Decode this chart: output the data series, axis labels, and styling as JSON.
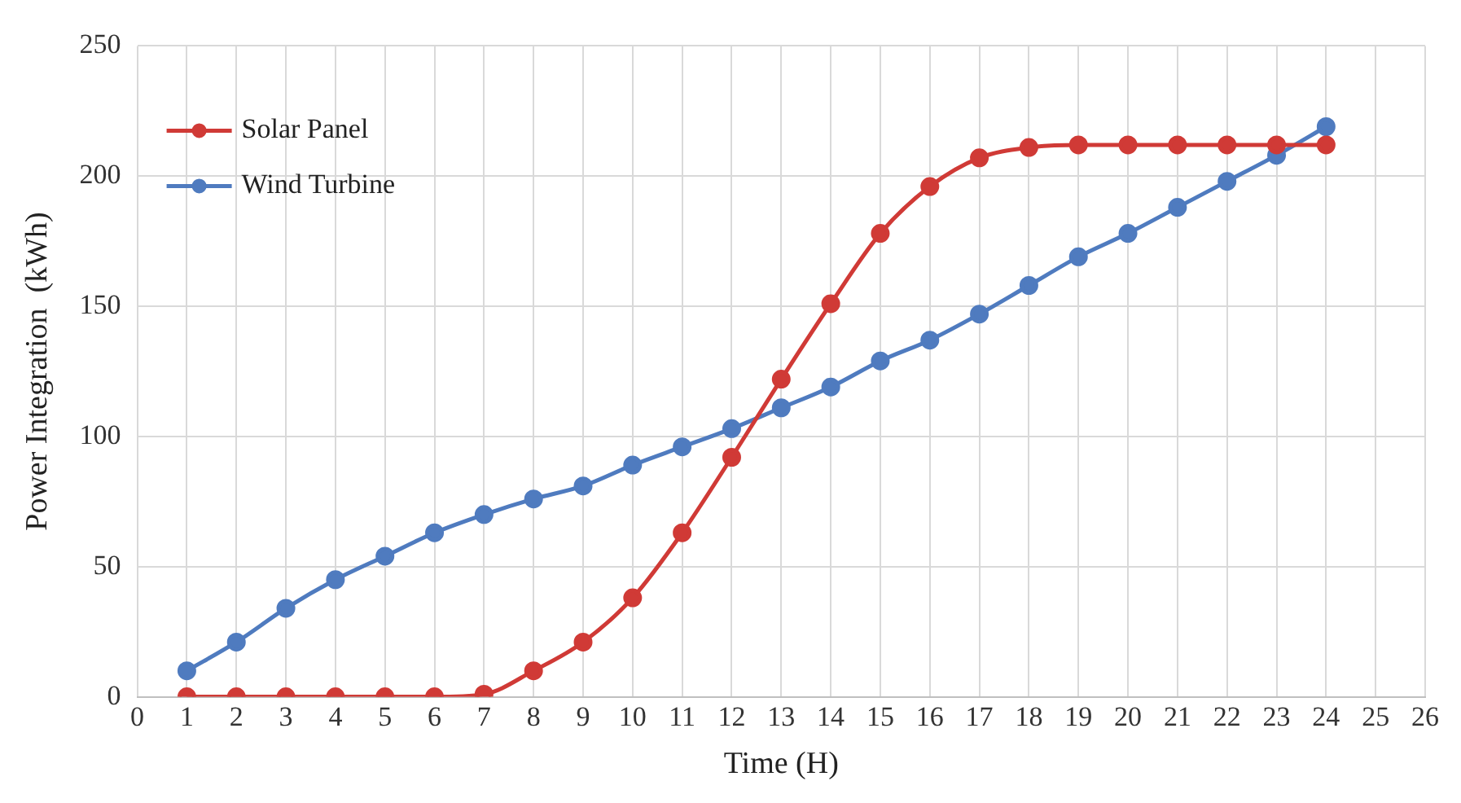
{
  "chart_data": {
    "type": "line",
    "xlabel": "Time (H)",
    "ylabel": "Power Integration  (kWh)",
    "x": [
      1,
      2,
      3,
      4,
      5,
      6,
      7,
      8,
      9,
      10,
      11,
      12,
      13,
      14,
      15,
      16,
      17,
      18,
      19,
      20,
      21,
      22,
      23,
      24
    ],
    "series": [
      {
        "name": "Solar Panel",
        "color": "#d03a36",
        "values": [
          0,
          0,
          0,
          0,
          0,
          0,
          1,
          10,
          21,
          38,
          63,
          92,
          122,
          151,
          178,
          196,
          207,
          211,
          212,
          212,
          212,
          212,
          212,
          212
        ]
      },
      {
        "name": "Wind Turbine",
        "color": "#4f7bbf",
        "values": [
          10,
          21,
          34,
          45,
          54,
          63,
          70,
          76,
          81,
          89,
          96,
          103,
          111,
          119,
          129,
          137,
          147,
          158,
          169,
          178,
          188,
          198,
          208,
          219
        ]
      }
    ],
    "xlim": [
      0,
      26
    ],
    "xticks": [
      0,
      1,
      2,
      3,
      4,
      5,
      6,
      7,
      8,
      9,
      10,
      11,
      12,
      13,
      14,
      15,
      16,
      17,
      18,
      19,
      20,
      21,
      22,
      23,
      24,
      25,
      26
    ],
    "ylim": [
      0,
      250
    ],
    "yticks": [
      0,
      50,
      100,
      150,
      200,
      250
    ],
    "grid": true,
    "legend": "top left",
    "marker": "circle",
    "line_style": "solid"
  }
}
